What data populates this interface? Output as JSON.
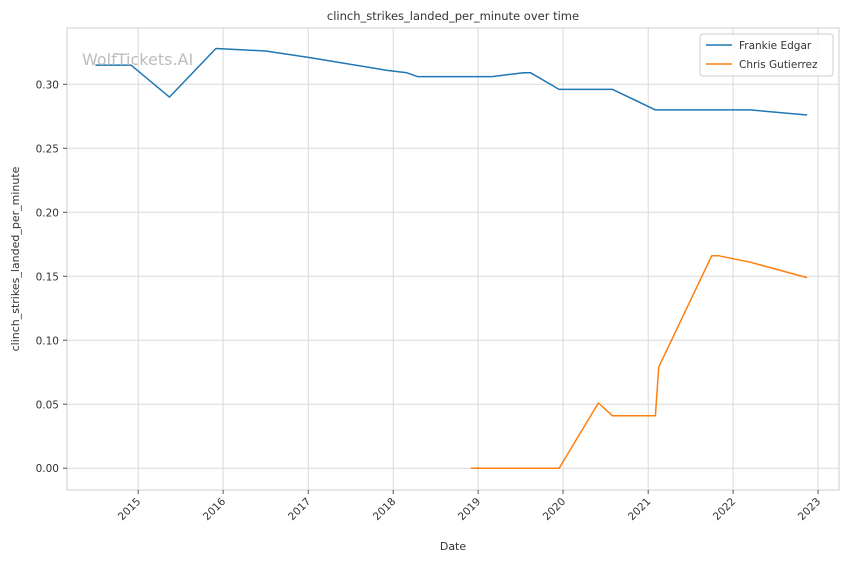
{
  "chart_data": {
    "type": "line",
    "title": "clinch_strikes_landed_per_minute over time",
    "xlabel": "Date",
    "ylabel": "clinch_strikes_landed_per_minute",
    "watermark": "WolfTickets.AI",
    "xlim": [
      "2014-03-01",
      "2023-04-01"
    ],
    "ylim": [
      -0.017,
      0.344
    ],
    "x_ticks": [
      "2015",
      "2016",
      "2017",
      "2018",
      "2019",
      "2020",
      "2021",
      "2022",
      "2023"
    ],
    "y_ticks": [
      "0.00",
      "0.05",
      "0.10",
      "0.15",
      "0.20",
      "0.25",
      "0.30"
    ],
    "grid": true,
    "legend_position": "top-right",
    "series": [
      {
        "name": "Frankie Edgar",
        "color": "#1f77b4",
        "points": [
          [
            "2014-07-01",
            0.315
          ],
          [
            "2014-12-01",
            0.315
          ],
          [
            "2015-05-15",
            0.29
          ],
          [
            "2015-12-01",
            0.328
          ],
          [
            "2016-07-01",
            0.326
          ],
          [
            "2017-01-01",
            0.321
          ],
          [
            "2017-12-01",
            0.311
          ],
          [
            "2018-03-01",
            0.309
          ],
          [
            "2018-04-15",
            0.306
          ],
          [
            "2019-03-01",
            0.306
          ],
          [
            "2019-07-15",
            0.309
          ],
          [
            "2019-08-15",
            0.309
          ],
          [
            "2019-12-15",
            0.296
          ],
          [
            "2020-08-01",
            0.296
          ],
          [
            "2021-02-01",
            0.28
          ],
          [
            "2021-10-15",
            0.28
          ],
          [
            "2021-11-15",
            0.28
          ],
          [
            "2022-03-15",
            0.28
          ],
          [
            "2022-11-15",
            0.276
          ]
        ]
      },
      {
        "name": "Chris Gutierrez",
        "color": "#ff7f0e",
        "points": [
          [
            "2018-12-01",
            0.0
          ],
          [
            "2019-12-15",
            0.0
          ],
          [
            "2020-06-01",
            0.051
          ],
          [
            "2020-08-01",
            0.041
          ],
          [
            "2021-02-01",
            0.041
          ],
          [
            "2021-02-15",
            0.079
          ],
          [
            "2021-10-01",
            0.166
          ],
          [
            "2021-11-01",
            0.166
          ],
          [
            "2022-03-15",
            0.161
          ],
          [
            "2022-11-15",
            0.149
          ]
        ]
      }
    ]
  }
}
